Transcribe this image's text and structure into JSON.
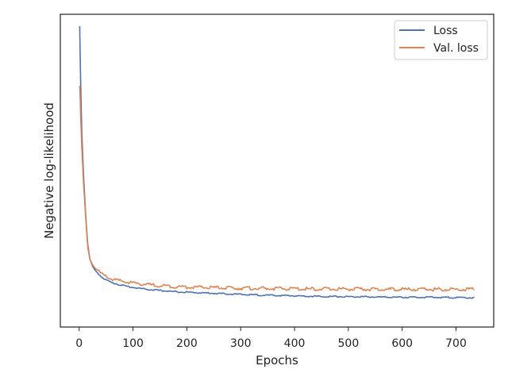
{
  "chart_data": {
    "type": "line",
    "title": "",
    "xlabel": "Epochs",
    "ylabel": "Negative log-likelihood",
    "xlim": [
      -35,
      770
    ],
    "ylim": [
      0,
      1
    ],
    "x_ticks": [
      0,
      100,
      200,
      300,
      400,
      500,
      600,
      700
    ],
    "x_tick_labels": [
      "0",
      "100",
      "200",
      "300",
      "400",
      "500",
      "600",
      "700"
    ],
    "y_ticks_shown": false,
    "grid": false,
    "legend": {
      "position": "top-right",
      "entries": [
        "Loss",
        "Val. loss"
      ]
    },
    "series": [
      {
        "name": "Loss",
        "color": "#4c72b0",
        "x": [
          1,
          2,
          3,
          5,
          8,
          12,
          16,
          20,
          25,
          30,
          40,
          50,
          60,
          75,
          90,
          110,
          130,
          150,
          175,
          200,
          250,
          300,
          350,
          400,
          450,
          500,
          550,
          600,
          650,
          700,
          735
        ],
        "y": [
          1.0,
          0.88,
          0.78,
          0.62,
          0.48,
          0.34,
          0.23,
          0.18,
          0.155,
          0.14,
          0.12,
          0.107,
          0.098,
          0.09,
          0.084,
          0.078,
          0.073,
          0.07,
          0.066,
          0.064,
          0.06,
          0.056,
          0.053,
          0.051,
          0.049,
          0.048,
          0.047,
          0.046,
          0.046,
          0.045,
          0.044
        ]
      },
      {
        "name": "Val. loss",
        "color": "#dd8452",
        "x": [
          1,
          2,
          3,
          5,
          8,
          12,
          16,
          20,
          25,
          30,
          40,
          50,
          60,
          75,
          90,
          110,
          130,
          150,
          175,
          200,
          250,
          300,
          350,
          400,
          450,
          500,
          550,
          600,
          650,
          700,
          735
        ],
        "y": [
          0.79,
          0.74,
          0.67,
          0.57,
          0.45,
          0.33,
          0.22,
          0.18,
          0.16,
          0.148,
          0.13,
          0.118,
          0.11,
          0.104,
          0.099,
          0.094,
          0.09,
          0.087,
          0.084,
          0.082,
          0.08,
          0.078,
          0.077,
          0.076,
          0.075,
          0.075,
          0.074,
          0.074,
          0.074,
          0.074,
          0.074
        ]
      }
    ]
  }
}
